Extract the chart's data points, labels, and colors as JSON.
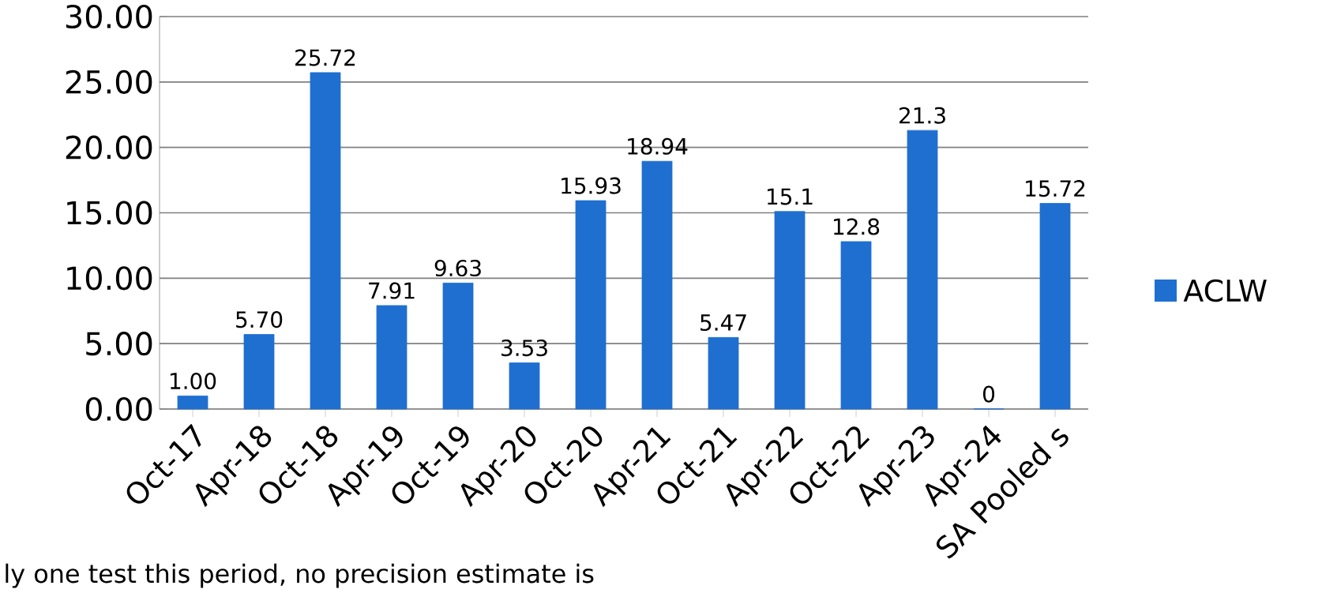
{
  "chart_data": {
    "type": "bar",
    "categories": [
      "Oct-17",
      "Apr-18",
      "Oct-18",
      "Apr-19",
      "Oct-19",
      "Apr-20",
      "Oct-20",
      "Apr-21",
      "Oct-21",
      "Apr-22",
      "Oct-22",
      "Apr-23",
      "Apr-24",
      "SA Pooled s"
    ],
    "series": [
      {
        "name": "ACLW",
        "color": "#1f6fd0",
        "values": [
          1.0,
          5.7,
          25.72,
          7.91,
          9.63,
          3.53,
          15.93,
          18.94,
          5.47,
          15.1,
          12.8,
          21.3,
          0,
          15.72
        ]
      }
    ],
    "value_labels": [
      "1.00",
      "5.70",
      "25.72",
      "7.91",
      "9.63",
      "3.53",
      "15.93",
      "18.94",
      "5.47",
      "15.1",
      "12.8",
      "21.3",
      "0",
      "15.72"
    ],
    "ylim": [
      0,
      30
    ],
    "yticks": [
      {
        "value": 0,
        "label": "0.00"
      },
      {
        "value": 5,
        "label": "5.00"
      },
      {
        "value": 10,
        "label": "10.00"
      },
      {
        "value": 15,
        "label": "15.00"
      },
      {
        "value": 20,
        "label": "20.00"
      },
      {
        "value": 25,
        "label": "25.00"
      },
      {
        "value": 30,
        "label": "30.00"
      }
    ],
    "grid": "y",
    "legend": "right",
    "annotations": [
      "ly one test this period, no precision estimate is"
    ]
  }
}
